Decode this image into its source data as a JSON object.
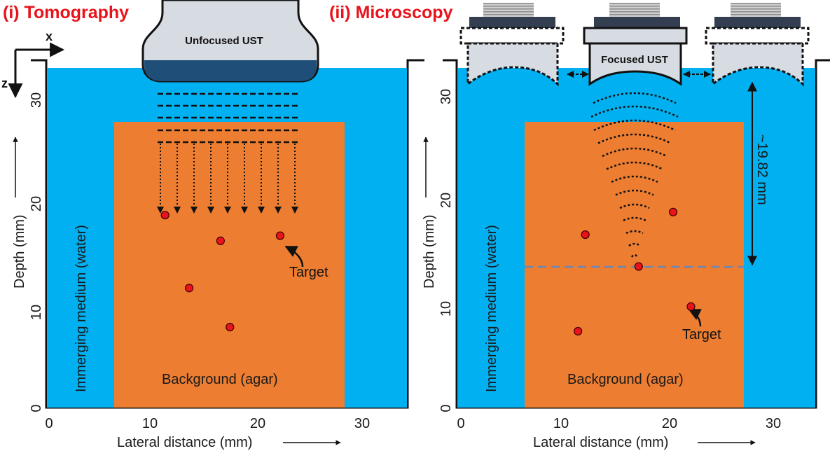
{
  "panels": {
    "tomography": {
      "title": "(i) Tomography",
      "transducer_label": "Unfocused UST",
      "target_label": "Target",
      "medium_label": "Immerging medium (water)",
      "background_label": "Background (agar)",
      "xlabel": "Lateral distance (mm)",
      "ylabel": "Depth (mm)",
      "x_ticks": [
        "0",
        "10",
        "20",
        "30"
      ],
      "y_ticks": [
        "0",
        "10",
        "20",
        "30"
      ],
      "axis_x_letter": "x",
      "axis_z_letter": "z",
      "targets_mm": [
        {
          "x": 11.1,
          "depth": 18.8
        },
        {
          "x": 16.4,
          "depth": 16.3
        },
        {
          "x": 22.1,
          "depth": 16.8
        },
        {
          "x": 13.4,
          "depth": 11.7
        },
        {
          "x": 17.3,
          "depth": 7.9
        }
      ]
    },
    "microscopy": {
      "title": "(ii) Microscopy",
      "transducer_label": "Focused UST",
      "target_label": "Target",
      "medium_label": "Immerging medium (water)",
      "background_label": "Background (agar)",
      "xlabel": "Lateral distance (mm)",
      "ylabel": "Depth (mm)",
      "x_ticks": [
        "0",
        "10",
        "20",
        "30"
      ],
      "y_ticks": [
        "0",
        "10",
        "20",
        "30"
      ],
      "focal_distance_label": "~19.82 mm",
      "targets_mm": [
        {
          "x": 11.9,
          "depth": 16.9
        },
        {
          "x": 20.3,
          "depth": 19.1
        },
        {
          "x": 17.0,
          "depth": 13.8
        },
        {
          "x": 22.0,
          "depth": 9.9
        },
        {
          "x": 11.2,
          "depth": 7.5
        }
      ]
    }
  },
  "colors": {
    "water": "#00b0f0",
    "agar": "#ed7d31",
    "target": "#e8131b",
    "title": "#e8131b",
    "focal_line": "#6b86b8",
    "transducer_body": "#d7dbe2",
    "transducer_face": "#1f4e79"
  }
}
